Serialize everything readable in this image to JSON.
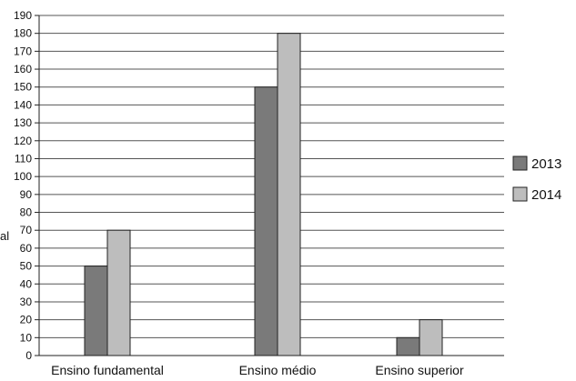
{
  "chart_data": {
    "type": "bar",
    "categories": [
      "Ensino fundamental",
      "Ensino médio",
      "Ensino superior"
    ],
    "series": [
      {
        "name": "2013",
        "values": [
          50,
          150,
          10
        ],
        "color": "#7a7a7a"
      },
      {
        "name": "2014",
        "values": [
          70,
          180,
          20
        ],
        "color": "#bdbdbd"
      }
    ],
    "ylim": [
      0,
      190
    ],
    "ytick_step": 10,
    "grid": true,
    "legend_position": "right",
    "ylabel_fragment": "al"
  }
}
